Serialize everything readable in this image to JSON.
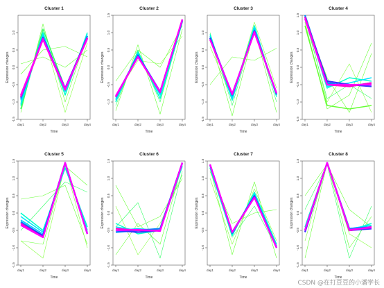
{
  "figure": {
    "watermark": "CSDN @在打豆豆的小潘学长"
  },
  "chart_data": [
    {
      "type": "line",
      "title": "Cluster 1",
      "xlabel": "Time",
      "ylabel": "Expression changes",
      "categories": [
        "day1",
        "day2",
        "day3",
        "day4"
      ],
      "ylim": [
        -1.5,
        1.5
      ],
      "yticks": [
        "-1.5",
        "-1.0",
        "-0.5",
        "0.0",
        "0.5",
        "1.0"
      ],
      "series": [
        {
          "color": "#66ff33",
          "values": [
            -1.3,
            1.25,
            -1.0,
            0.95
          ]
        },
        {
          "color": "#66ff33",
          "values": [
            -0.2,
            0.5,
            0.6,
            0.3
          ]
        },
        {
          "color": "#88ff44",
          "values": [
            -1.0,
            1.0,
            -1.3,
            0.7
          ]
        },
        {
          "color": "#66ff33",
          "values": [
            0.1,
            0.3,
            0.0,
            0.5
          ]
        },
        {
          "color": "#33ff66",
          "values": [
            -1.2,
            1.1,
            -0.6,
            0.9
          ]
        },
        {
          "color": "#00ffcc",
          "values": [
            -1.1,
            1.0,
            -0.8,
            1.0
          ]
        },
        {
          "color": "#00e5ff",
          "values": [
            -1.05,
            0.95,
            -0.7,
            0.95
          ]
        },
        {
          "color": "#00ccff",
          "values": [
            -0.95,
            0.9,
            -0.65,
            0.9
          ]
        },
        {
          "color": "#0088ff",
          "values": [
            -0.9,
            0.85,
            -0.65,
            0.9
          ]
        },
        {
          "color": "#3333ff",
          "values": [
            -0.85,
            0.85,
            -0.6,
            0.85
          ]
        },
        {
          "color": "#ff00cc",
          "values": [
            -0.85,
            0.8,
            -0.65,
            0.85
          ]
        },
        {
          "color": "#ff00ff",
          "values": [
            -0.8,
            0.82,
            -0.62,
            0.82
          ]
        }
      ]
    },
    {
      "type": "line",
      "title": "Cluster 2",
      "xlabel": "Time",
      "ylabel": "Expression changes",
      "categories": [
        "day1",
        "day2",
        "day3",
        "day4"
      ],
      "ylim": [
        -1.5,
        1.5
      ],
      "yticks": [
        "-1.0",
        "-0.5",
        "0.0",
        "0.5",
        "1.0",
        "1.5"
      ],
      "series": [
        {
          "color": "#66ff33",
          "values": [
            -1.25,
            0.65,
            -1.35,
            1.1
          ]
        },
        {
          "color": "#66ff33",
          "values": [
            -0.4,
            0.5,
            0.0,
            1.2
          ]
        },
        {
          "color": "#88ff44",
          "values": [
            -0.8,
            0.2,
            0.1,
            0.9
          ]
        },
        {
          "color": "#33ff66",
          "values": [
            -1.1,
            0.5,
            -1.0,
            1.3
          ]
        },
        {
          "color": "#00ffcc",
          "values": [
            -1.0,
            0.45,
            -0.9,
            1.3
          ]
        },
        {
          "color": "#00e5ff",
          "values": [
            -0.95,
            0.4,
            -0.8,
            1.35
          ]
        },
        {
          "color": "#00ccff",
          "values": [
            -0.9,
            0.38,
            -0.75,
            1.35
          ]
        },
        {
          "color": "#0088ff",
          "values": [
            -0.85,
            0.35,
            -0.7,
            1.35
          ]
        },
        {
          "color": "#3333ff",
          "values": [
            -0.85,
            0.32,
            -0.7,
            1.35
          ]
        },
        {
          "color": "#ff00cc",
          "values": [
            -0.85,
            0.3,
            -0.72,
            1.38
          ]
        },
        {
          "color": "#ff00ff",
          "values": [
            -0.82,
            0.3,
            -0.7,
            1.38
          ]
        }
      ]
    },
    {
      "type": "line",
      "title": "Cluster 3",
      "xlabel": "Time",
      "ylabel": "Expression changes",
      "categories": [
        "day1",
        "day2",
        "day3",
        "day4"
      ],
      "ylim": [
        -1.5,
        1.5
      ],
      "yticks": [
        "-1.5",
        "-1.0",
        "-0.5",
        "0.0",
        "0.5",
        "1.0"
      ],
      "series": [
        {
          "color": "#66ff33",
          "values": [
            -0.5,
            0.3,
            0.2,
            0.55
          ]
        },
        {
          "color": "#66ff33",
          "values": [
            0.9,
            -1.4,
            1.1,
            -1.3
          ]
        },
        {
          "color": "#88ff44",
          "values": [
            0.6,
            -0.9,
            1.3,
            -0.6
          ]
        },
        {
          "color": "#33ff66",
          "values": [
            1.0,
            -1.1,
            1.15,
            -1.0
          ]
        },
        {
          "color": "#00ffcc",
          "values": [
            0.95,
            -0.95,
            1.2,
            -0.85
          ]
        },
        {
          "color": "#00e5ff",
          "values": [
            0.9,
            -0.9,
            1.15,
            -0.8
          ]
        },
        {
          "color": "#00ccff",
          "values": [
            0.85,
            -0.85,
            1.1,
            -0.8
          ]
        },
        {
          "color": "#0088ff",
          "values": [
            0.85,
            -0.8,
            1.05,
            -0.78
          ]
        },
        {
          "color": "#3333ff",
          "values": [
            0.85,
            -0.78,
            1.05,
            -0.75
          ]
        },
        {
          "color": "#ff00cc",
          "values": [
            0.8,
            -0.78,
            1.02,
            -0.75
          ]
        },
        {
          "color": "#ff00ff",
          "values": [
            0.8,
            -0.76,
            1.0,
            -0.74
          ]
        }
      ]
    },
    {
      "type": "line",
      "title": "Cluster 4",
      "xlabel": "Time",
      "ylabel": "Expression changes",
      "categories": [
        "day1",
        "day2",
        "day3",
        "day4"
      ],
      "ylim": [
        -1.5,
        1.5
      ],
      "yticks": [
        "-1.5",
        "-1.0",
        "-0.5",
        "0.0",
        "0.5",
        "1.0",
        "1.5"
      ],
      "series": [
        {
          "color": "#66ff33",
          "values": [
            1.3,
            -1.2,
            -0.8,
            0.7
          ]
        },
        {
          "color": "#66ff33",
          "values": [
            1.4,
            -0.3,
            -1.3,
            0.4
          ]
        },
        {
          "color": "#88ff44",
          "values": [
            1.5,
            -1.0,
            0.1,
            -1.3
          ]
        },
        {
          "color": "#33ff66",
          "values": [
            1.4,
            -0.9,
            -0.5,
            -0.9
          ]
        },
        {
          "color": "#66ff33",
          "values": [
            1.2,
            -1.1,
            -1.2,
            -1.1
          ]
        },
        {
          "color": "#00ffcc",
          "values": [
            1.45,
            -0.6,
            -0.3,
            -0.4
          ]
        },
        {
          "color": "#00e5ff",
          "values": [
            1.45,
            -0.55,
            -0.45,
            -0.3
          ]
        },
        {
          "color": "#00ccff",
          "values": [
            1.5,
            -0.5,
            -0.5,
            -0.5
          ]
        },
        {
          "color": "#0088ff",
          "values": [
            1.5,
            -0.45,
            -0.55,
            -0.45
          ]
        },
        {
          "color": "#3333ff",
          "values": [
            1.45,
            -0.4,
            -0.5,
            -0.55
          ]
        },
        {
          "color": "#ff00cc",
          "values": [
            1.45,
            -0.5,
            -0.55,
            -0.45
          ]
        },
        {
          "color": "#ff00ff",
          "values": [
            1.4,
            -0.5,
            -0.5,
            -0.5
          ]
        }
      ]
    },
    {
      "type": "line",
      "title": "Cluster 5",
      "xlabel": "Time",
      "ylabel": "Expression changes",
      "categories": [
        "day1",
        "day2",
        "day3",
        "day4"
      ],
      "ylim": [
        -1.5,
        1.5
      ],
      "yticks": [
        "-1.5",
        "-1.0",
        "-0.5",
        "0.0",
        "0.5",
        "1.0",
        "1.5"
      ],
      "series": [
        {
          "color": "#66ff33",
          "values": [
            -0.8,
            -0.9,
            1.35,
            0.8
          ]
        },
        {
          "color": "#66ff33",
          "values": [
            0.4,
            0.5,
            0.8,
            -0.9
          ]
        },
        {
          "color": "#88ff44",
          "values": [
            -0.8,
            -1.3,
            1.4,
            -1.0
          ]
        },
        {
          "color": "#33ff66",
          "values": [
            -0.5,
            0.2,
            0.9,
            0.6
          ]
        },
        {
          "color": "#00ffcc",
          "values": [
            0.0,
            -0.5,
            1.3,
            -0.4
          ]
        },
        {
          "color": "#00e5ff",
          "values": [
            -0.1,
            -0.55,
            1.4,
            -0.5
          ]
        },
        {
          "color": "#00ccff",
          "values": [
            -0.2,
            -0.6,
            1.45,
            -0.55
          ]
        },
        {
          "color": "#0088ff",
          "values": [
            -0.25,
            -0.65,
            1.45,
            -0.6
          ]
        },
        {
          "color": "#3333ff",
          "values": [
            -0.3,
            -0.65,
            1.45,
            -0.6
          ]
        },
        {
          "color": "#ff00cc",
          "values": [
            -0.3,
            -0.7,
            1.45,
            -0.6
          ]
        },
        {
          "color": "#ff00ff",
          "values": [
            -0.35,
            -0.7,
            1.45,
            -0.6
          ]
        }
      ]
    },
    {
      "type": "line",
      "title": "Cluster 6",
      "xlabel": "Time",
      "ylabel": "Expression changes",
      "categories": [
        "day1",
        "day2",
        "day3",
        "day4"
      ],
      "ylim": [
        -1.5,
        1.5
      ],
      "yticks": [
        "-1.5",
        "-1.0",
        "-0.5",
        "0.0",
        "0.5",
        "1.0",
        "1.5"
      ],
      "series": [
        {
          "color": "#66ff33",
          "values": [
            0.8,
            -0.4,
            -0.1,
            1.0
          ]
        },
        {
          "color": "#66ff33",
          "values": [
            -1.2,
            -0.3,
            -0.9,
            1.4
          ]
        },
        {
          "color": "#88ff44",
          "values": [
            0.2,
            -1.2,
            -0.3,
            1.1
          ]
        },
        {
          "color": "#33ff66",
          "values": [
            -0.4,
            0.3,
            -1.3,
            1.2
          ]
        },
        {
          "color": "#00ffcc",
          "values": [
            -0.3,
            -0.6,
            -0.5,
            1.35
          ]
        },
        {
          "color": "#00e5ff",
          "values": [
            -0.4,
            -0.5,
            -0.45,
            1.4
          ]
        },
        {
          "color": "#00ccff",
          "values": [
            -0.5,
            -0.45,
            -0.5,
            1.45
          ]
        },
        {
          "color": "#0088ff",
          "values": [
            -0.55,
            -0.5,
            -0.45,
            1.45
          ]
        },
        {
          "color": "#3333ff",
          "values": [
            -0.5,
            -0.55,
            -0.5,
            1.45
          ]
        },
        {
          "color": "#ff00cc",
          "values": [
            -0.45,
            -0.5,
            -0.5,
            1.45
          ]
        },
        {
          "color": "#ff00ff",
          "values": [
            -0.5,
            -0.48,
            -0.52,
            1.45
          ]
        }
      ]
    },
    {
      "type": "line",
      "title": "Cluster 7",
      "xlabel": "Time",
      "ylabel": "Expression changes",
      "categories": [
        "day1",
        "day2",
        "day3",
        "day4"
      ],
      "ylim": [
        -1.5,
        1.5
      ],
      "yticks": [
        "-1.0",
        "-0.5",
        "0.0",
        "0.5",
        "1.0",
        "1.5"
      ],
      "series": [
        {
          "color": "#66ff33",
          "values": [
            1.2,
            -0.3,
            0.0,
            0.1
          ]
        },
        {
          "color": "#66ff33",
          "values": [
            1.3,
            -1.2,
            0.9,
            -1.3
          ]
        },
        {
          "color": "#88ff44",
          "values": [
            1.0,
            -0.9,
            0.7,
            -0.8
          ]
        },
        {
          "color": "#33ff66",
          "values": [
            1.35,
            -0.7,
            0.2,
            -1.0
          ]
        },
        {
          "color": "#00ffcc",
          "values": [
            1.3,
            -0.65,
            0.6,
            -0.9
          ]
        },
        {
          "color": "#00e5ff",
          "values": [
            1.35,
            -0.6,
            0.55,
            -0.95
          ]
        },
        {
          "color": "#00ccff",
          "values": [
            1.35,
            -0.6,
            0.5,
            -0.95
          ]
        },
        {
          "color": "#0088ff",
          "values": [
            1.4,
            -0.58,
            0.5,
            -1.0
          ]
        },
        {
          "color": "#3333ff",
          "values": [
            1.4,
            -0.55,
            0.48,
            -1.0
          ]
        },
        {
          "color": "#ff00cc",
          "values": [
            1.4,
            -0.55,
            0.45,
            -1.0
          ]
        },
        {
          "color": "#ff00ff",
          "values": [
            1.4,
            -0.55,
            0.45,
            -1.0
          ]
        }
      ]
    },
    {
      "type": "line",
      "title": "Cluster 8",
      "xlabel": "Time",
      "ylabel": "Expression changes",
      "categories": [
        "day1",
        "day2",
        "day3",
        "day4"
      ],
      "ylim": [
        -1.5,
        1.5
      ],
      "yticks": [
        "-1.5",
        "-1.0",
        "-0.5",
        "0.0",
        "0.5",
        "1.0",
        "1.5"
      ],
      "series": [
        {
          "color": "#66ff33",
          "values": [
            -1.3,
            1.45,
            -1.0,
            -0.1
          ]
        },
        {
          "color": "#66ff33",
          "values": [
            0.5,
            1.4,
            0.1,
            -0.4
          ]
        },
        {
          "color": "#88ff44",
          "values": [
            -0.8,
            1.45,
            -0.6,
            -1.0
          ]
        },
        {
          "color": "#33ff66",
          "values": [
            0.1,
            1.4,
            -1.3,
            0.2
          ]
        },
        {
          "color": "#00ffcc",
          "values": [
            -0.4,
            1.45,
            -0.5,
            -0.3
          ]
        },
        {
          "color": "#00e5ff",
          "values": [
            -0.45,
            1.45,
            -0.45,
            -0.35
          ]
        },
        {
          "color": "#00ccff",
          "values": [
            -0.5,
            1.45,
            -0.5,
            -0.4
          ]
        },
        {
          "color": "#0088ff",
          "values": [
            -0.5,
            1.45,
            -0.45,
            -0.4
          ]
        },
        {
          "color": "#3333ff",
          "values": [
            -0.55,
            1.45,
            -0.5,
            -0.45
          ]
        },
        {
          "color": "#ff00cc",
          "values": [
            -0.5,
            1.45,
            -0.5,
            -0.4
          ]
        },
        {
          "color": "#ff00ff",
          "values": [
            -0.5,
            1.45,
            -0.48,
            -0.42
          ]
        }
      ]
    }
  ]
}
